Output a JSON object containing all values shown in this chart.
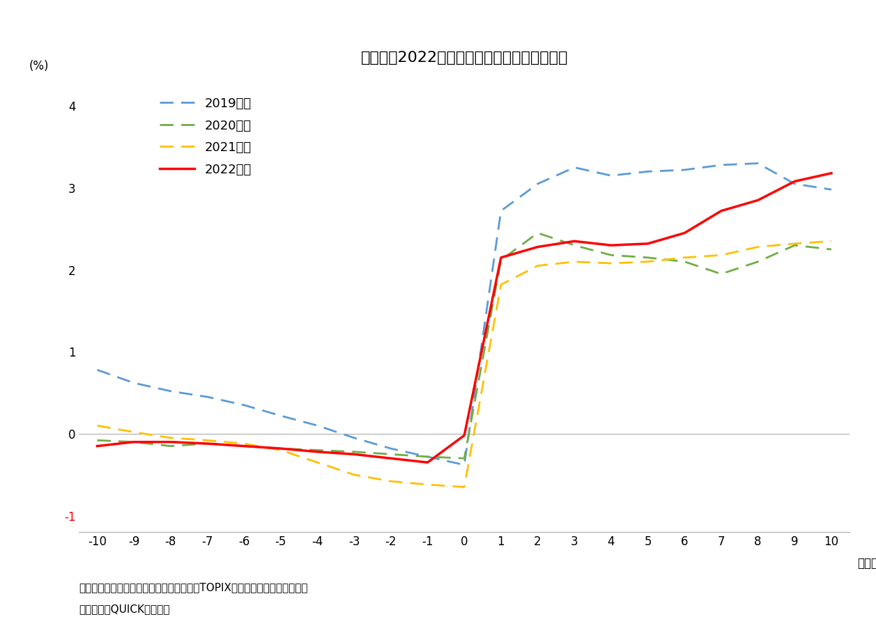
{
  "title": "図表３　2022年度も株価の反応はポジティブ",
  "x": [
    -10,
    -9,
    -8,
    -7,
    -6,
    -5,
    -4,
    -3,
    -2,
    -1,
    0,
    1,
    2,
    3,
    4,
    5,
    6,
    7,
    8,
    9,
    10
  ],
  "series_2019": [
    0.78,
    0.62,
    0.52,
    0.45,
    0.35,
    0.22,
    0.1,
    -0.05,
    -0.18,
    -0.28,
    -0.38,
    2.72,
    3.05,
    3.25,
    3.15,
    3.2,
    3.22,
    3.28,
    3.3,
    3.05,
    2.98
  ],
  "series_2020": [
    -0.08,
    -0.1,
    -0.15,
    -0.12,
    -0.15,
    -0.18,
    -0.2,
    -0.22,
    -0.25,
    -0.28,
    -0.3,
    2.12,
    2.45,
    2.3,
    2.18,
    2.15,
    2.1,
    1.95,
    2.1,
    2.3,
    2.25
  ],
  "series_2021": [
    0.1,
    0.02,
    -0.05,
    -0.08,
    -0.12,
    -0.2,
    -0.35,
    -0.5,
    -0.58,
    -0.62,
    -0.65,
    1.82,
    2.05,
    2.1,
    2.08,
    2.1,
    2.15,
    2.18,
    2.28,
    2.32,
    2.35
  ],
  "series_2022": [
    -0.15,
    -0.1,
    -0.1,
    -0.12,
    -0.15,
    -0.18,
    -0.22,
    -0.25,
    -0.3,
    -0.35,
    -0.02,
    2.15,
    2.28,
    2.35,
    2.3,
    2.32,
    2.45,
    2.72,
    2.85,
    3.08,
    3.18
  ],
  "color_2019": "#5B9BD5",
  "color_2020": "#70AD47",
  "color_2021": "#FFC000",
  "color_2022": "#FF0000",
  "legend_2019": "2019年度",
  "legend_2020": "2020年度",
  "legend_2021": "2021年度",
  "legend_2022": "2022年度",
  "ylabel": "(%)",
  "xlabel": "（日）",
  "ylim": [
    -1.2,
    4.3
  ],
  "yticks": [
    -1,
    0,
    1,
    2,
    3,
    4
  ],
  "note1": "（注）　自社株買い設定日を０日として対TOPIX累積超過収益率の単純平均",
  "note2": "（資料）　QUICKから作成",
  "background_color": "#FFFFFF"
}
